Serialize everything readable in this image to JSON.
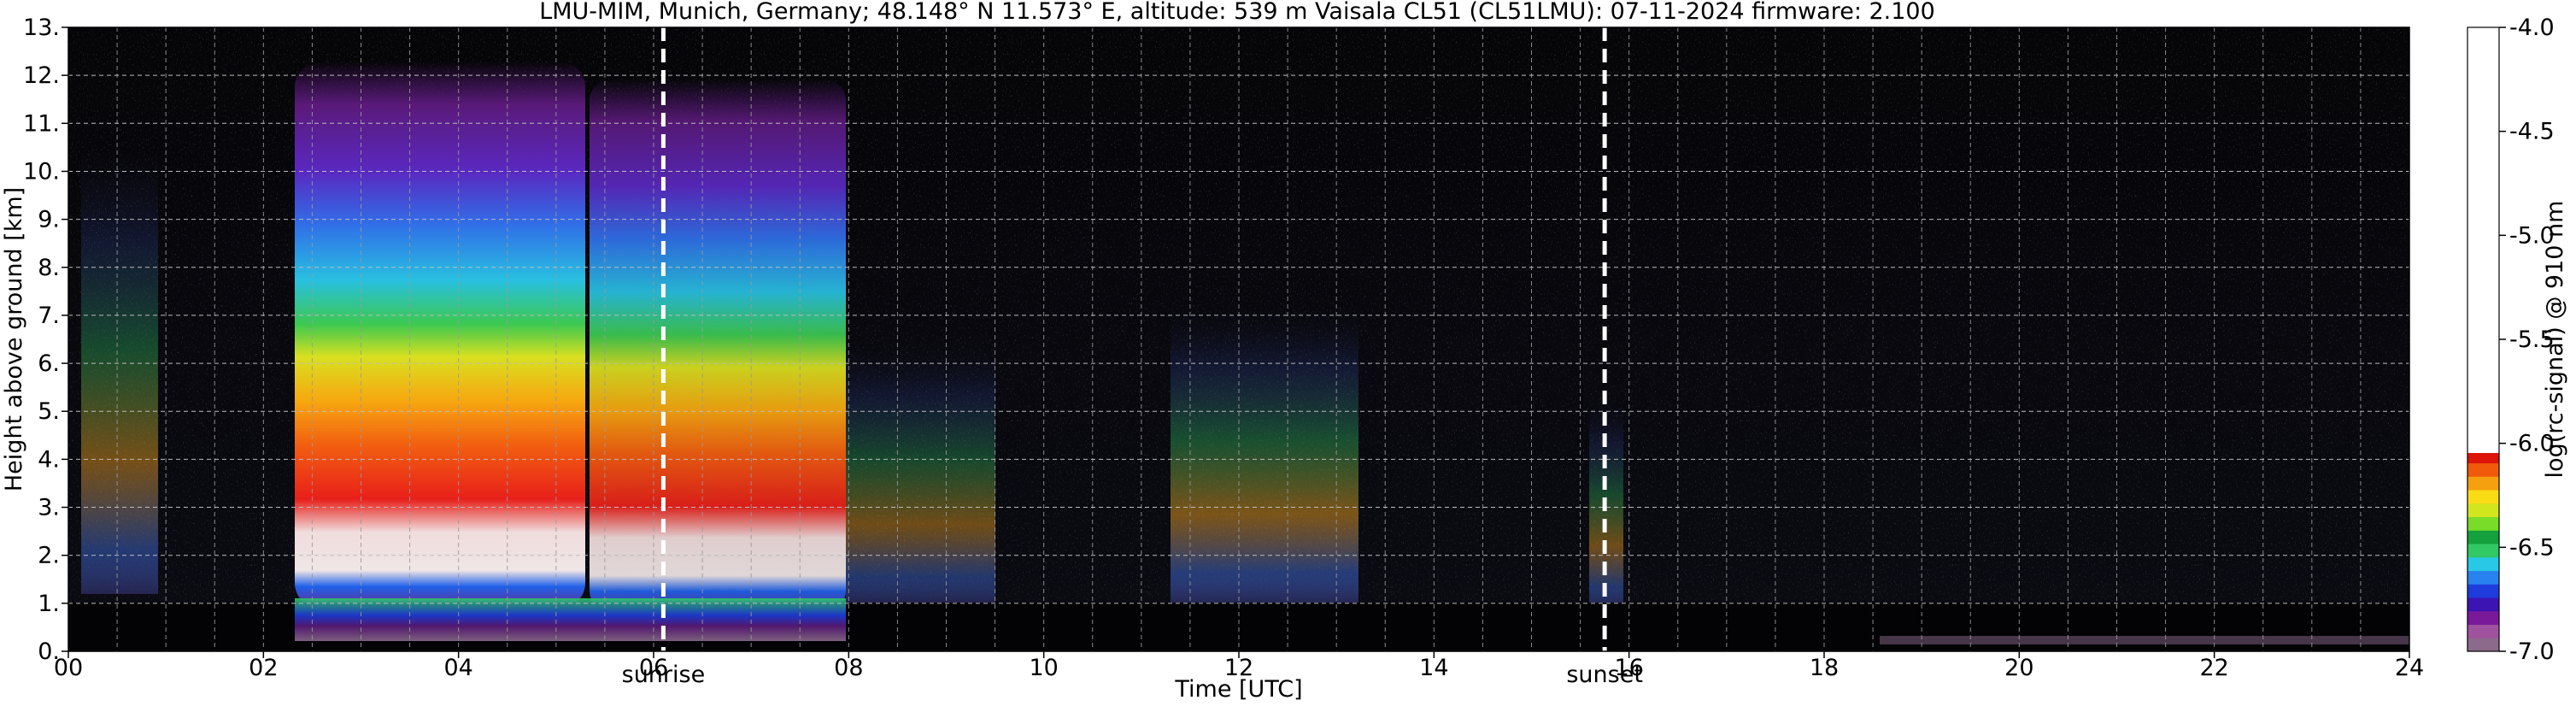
{
  "chart_data": {
    "type": "heatmap",
    "title": "LMU-MIM, Munich, Germany; 48.148° N 11.573° E, altitude: 539 m    Vaisala CL51 (CL51LMU): 07-11-2024    firmware: 2.100",
    "xlabel": "Time [UTC]",
    "ylabel": "Height above ground [km]",
    "xlim": [
      0,
      24
    ],
    "ylim": [
      0,
      13
    ],
    "xticks": [
      {
        "value": 0,
        "label": "00"
      },
      {
        "value": 2,
        "label": "02"
      },
      {
        "value": 4,
        "label": "04"
      },
      {
        "value": 6,
        "label": "06"
      },
      {
        "value": 8,
        "label": "08"
      },
      {
        "value": 10,
        "label": "10"
      },
      {
        "value": 12,
        "label": "12"
      },
      {
        "value": 14,
        "label": "14"
      },
      {
        "value": 16,
        "label": "16"
      },
      {
        "value": 18,
        "label": "18"
      },
      {
        "value": 20,
        "label": "20"
      },
      {
        "value": 22,
        "label": "22"
      },
      {
        "value": 24,
        "label": "24"
      }
    ],
    "yticks": [
      {
        "value": 0,
        "label": "0."
      },
      {
        "value": 1,
        "label": "1."
      },
      {
        "value": 2,
        "label": "2."
      },
      {
        "value": 3,
        "label": "3."
      },
      {
        "value": 4,
        "label": "4."
      },
      {
        "value": 5,
        "label": "5."
      },
      {
        "value": 6,
        "label": "6."
      },
      {
        "value": 7,
        "label": "7."
      },
      {
        "value": 8,
        "label": "8."
      },
      {
        "value": 9,
        "label": "9."
      },
      {
        "value": 10,
        "label": "10."
      },
      {
        "value": 11,
        "label": "11."
      },
      {
        "value": 12,
        "label": "12."
      },
      {
        "value": 13,
        "label": "13."
      }
    ],
    "grid": true,
    "minor_x_grid_interval_hours": 0.5,
    "annotations": [
      {
        "label": "sunrise",
        "time": 6.1
      },
      {
        "label": "sunset",
        "time": 15.75
      }
    ],
    "colorbar": {
      "label": "log(rc-signal) @ 910 nm",
      "min": -7.0,
      "max": -4.0,
      "ticks": [
        {
          "value": -4.0,
          "label": "-4.0"
        },
        {
          "value": -4.5,
          "label": "-4.5"
        },
        {
          "value": -5.0,
          "label": "-5.0"
        },
        {
          "value": -5.5,
          "label": "-5.5"
        },
        {
          "value": -6.0,
          "label": "-6.0"
        },
        {
          "value": -6.5,
          "label": "-6.5"
        },
        {
          "value": -7.0,
          "label": "-7.0"
        }
      ],
      "colors": [
        "#8c6a8c",
        "#a0529e",
        "#7a1a9a",
        "#3c14b4",
        "#1e3cdc",
        "#2882f0",
        "#28c8e6",
        "#32c864",
        "#14a03c",
        "#78dc28",
        "#d2e61e",
        "#fadc14",
        "#f5a00f",
        "#f05a0a",
        "#dc140a",
        "#f0dcdc",
        "#ffffff"
      ]
    },
    "notable_features": [
      {
        "description": "strong backscatter band",
        "time_range": [
          2.5,
          5.3
        ],
        "height_range_km": [
          1.0,
          2.0
        ],
        "max_log_signal": -5.8
      },
      {
        "description": "strong backscatter band",
        "time_range": [
          5.4,
          6.6
        ],
        "height_range_km": [
          1.0,
          2.0
        ],
        "max_log_signal": -5.9
      },
      {
        "description": "surface layer",
        "time_range": [
          0,
          24
        ],
        "height_range_km": [
          0,
          0.9
        ]
      }
    ]
  }
}
